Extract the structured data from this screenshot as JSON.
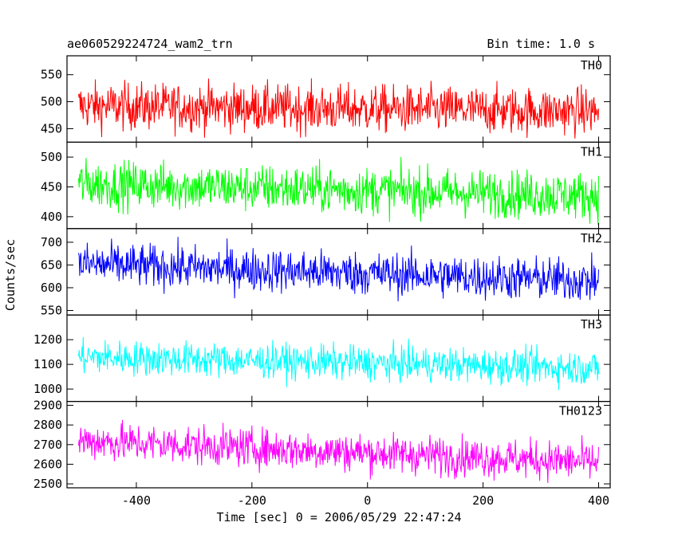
{
  "chart_data": {
    "type": "line",
    "title": "ae060529224724_wam2_trn",
    "subtitle": "Bin time: 1.0 s",
    "xlabel": "Time [sec] 0 = 2006/05/29 22:47:24",
    "ylabel": "Counts/sec",
    "xlim": [
      -520,
      420
    ],
    "x_ticks": [
      -400,
      -200,
      0,
      200,
      400
    ],
    "x_range": [
      -500,
      400
    ],
    "bin_time_s": 1.0,
    "panels": [
      {
        "name": "TH0",
        "color": "#ff0000",
        "ylim": [
          425,
          585
        ],
        "y_ticks": [
          450,
          500,
          550
        ],
        "level_start": 492,
        "level_end": 482,
        "spread": 22
      },
      {
        "name": "TH1",
        "color": "#00ff00",
        "ylim": [
          380,
          525
        ],
        "y_ticks": [
          400,
          450,
          500
        ],
        "level_start": 455,
        "level_end": 435,
        "spread": 20
      },
      {
        "name": "TH2",
        "color": "#0000ff",
        "ylim": [
          540,
          730
        ],
        "y_ticks": [
          550,
          600,
          650,
          700
        ],
        "level_start": 652,
        "level_end": 615,
        "spread": 24
      },
      {
        "name": "TH3",
        "color": "#00ffff",
        "ylim": [
          950,
          1300
        ],
        "y_ticks": [
          1000,
          1100,
          1200
        ],
        "level_start": 1130,
        "level_end": 1085,
        "spread": 35
      },
      {
        "name": "TH0123",
        "color": "#ff00ff",
        "ylim": [
          2480,
          2920
        ],
        "y_ticks": [
          2500,
          2600,
          2700,
          2800,
          2900
        ],
        "level_start": 2720,
        "level_end": 2610,
        "spread": 50
      }
    ]
  }
}
